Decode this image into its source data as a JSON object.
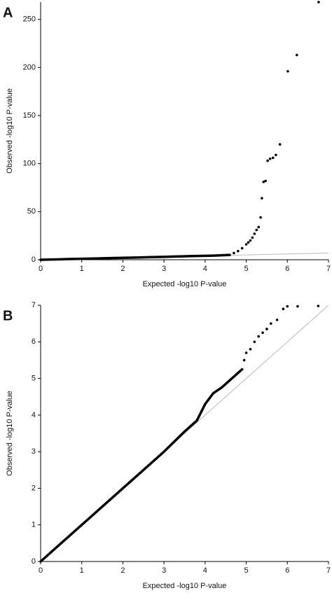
{
  "chart_data": [
    {
      "type": "scatter",
      "panel_label": "A",
      "x_label": "Expected -log10 P-value",
      "y_label": "Observed -log10 P-value",
      "xlim": [
        0,
        7
      ],
      "ylim": [
        0,
        268
      ],
      "xticks": [
        0,
        1,
        2,
        3,
        4,
        5,
        6,
        7
      ],
      "yticks": [
        0,
        50,
        100,
        150,
        200,
        250
      ],
      "reference": {
        "x": [
          0,
          7
        ],
        "y": [
          0,
          7
        ],
        "color": "#bbbbbb"
      },
      "series": [
        {
          "style": "line",
          "color": "#000000",
          "x": [
            0,
            0.2,
            0.4,
            0.6,
            0.8,
            1.0,
            1.2,
            1.4,
            1.6,
            1.8,
            2.0,
            2.2,
            2.4,
            2.6,
            2.8,
            3.0,
            3.2,
            3.4,
            3.6,
            3.8,
            4.0,
            4.2,
            4.4,
            4.6
          ],
          "values": [
            0,
            0.2,
            0.4,
            0.6,
            0.8,
            1.0,
            1.2,
            1.4,
            1.6,
            1.8,
            2.0,
            2.2,
            2.4,
            2.6,
            2.8,
            3.0,
            3.3,
            3.5,
            3.7,
            3.9,
            4.1,
            4.3,
            4.6,
            5
          ]
        },
        {
          "style": "points",
          "color": "#000000",
          "x": [
            4.7,
            4.8,
            4.9,
            5.0,
            5.05,
            5.1,
            5.15,
            5.2,
            5.25,
            5.3,
            5.35,
            5.38,
            5.42,
            5.47,
            5.52,
            5.58,
            5.65,
            5.72,
            5.82,
            6.01,
            6.23,
            6.76
          ],
          "values": [
            7,
            9,
            12,
            16,
            18,
            20,
            23,
            27,
            31,
            34,
            44,
            64,
            81,
            82,
            103,
            105,
            106,
            109,
            120,
            196,
            213,
            268
          ]
        }
      ]
    },
    {
      "type": "scatter",
      "panel_label": "B",
      "x_label": "Expected -log10 P-value",
      "y_label": "Observed -log10 P-value",
      "xlim": [
        0,
        7
      ],
      "ylim": [
        0,
        7
      ],
      "xticks": [
        0,
        1,
        2,
        3,
        4,
        5,
        6,
        7
      ],
      "yticks": [
        0,
        1,
        2,
        3,
        4,
        5,
        6,
        7
      ],
      "reference": {
        "x": [
          0,
          7
        ],
        "y": [
          0,
          7
        ],
        "color": "#bbbbbb"
      },
      "series": [
        {
          "style": "line",
          "color": "#000000",
          "x": [
            0,
            0.5,
            1.0,
            1.5,
            2.0,
            2.5,
            3.0,
            3.5,
            3.6,
            3.8,
            4.0,
            4.2,
            4.4,
            4.6,
            4.8,
            4.9
          ],
          "values": [
            0,
            0.5,
            1.0,
            1.5,
            2.0,
            2.5,
            3.0,
            3.55,
            3.65,
            3.85,
            4.3,
            4.6,
            4.75,
            4.95,
            5.15,
            5.25
          ]
        },
        {
          "style": "points",
          "color": "#000000",
          "x": [
            4.95,
            5.0,
            5.1,
            5.2,
            5.3,
            5.4,
            5.5,
            5.6,
            5.75,
            5.9,
            6.0,
            6.25,
            6.75
          ],
          "values": [
            5.5,
            5.7,
            5.8,
            6.0,
            6.15,
            6.25,
            6.35,
            6.5,
            6.6,
            6.9,
            6.97,
            6.97,
            6.98
          ]
        }
      ]
    }
  ]
}
